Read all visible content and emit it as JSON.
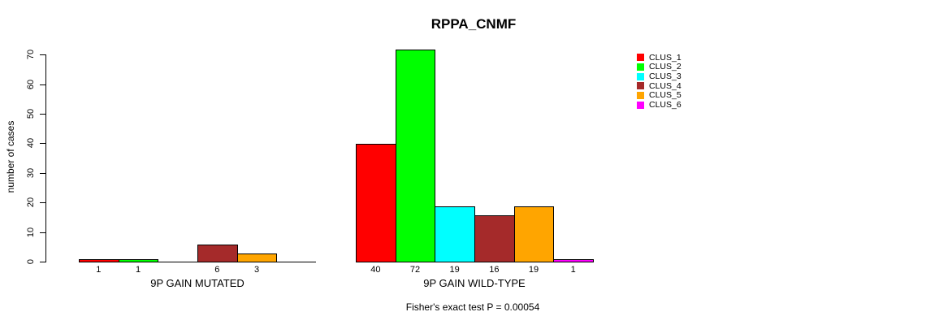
{
  "chart_data": {
    "type": "bar",
    "title": "RPPA_CNMF",
    "ylabel": "number of cases",
    "xlabel": "",
    "ylim": [
      0,
      70
    ],
    "yticks": [
      0,
      10,
      20,
      30,
      40,
      50,
      60,
      70
    ],
    "grid": false,
    "legend_position": "right",
    "categories": [
      "9P GAIN MUTATED",
      "9P GAIN WILD-TYPE"
    ],
    "series": [
      {
        "name": "CLUS_1",
        "color": "#FF0000",
        "values": [
          1,
          40
        ]
      },
      {
        "name": "CLUS_2",
        "color": "#00FF00",
        "values": [
          1,
          72
        ]
      },
      {
        "name": "CLUS_3",
        "color": "#00FFFF",
        "values": [
          0,
          19
        ]
      },
      {
        "name": "CLUS_4",
        "color": "#A52A2A",
        "values": [
          6,
          16
        ]
      },
      {
        "name": "CLUS_5",
        "color": "#FFA500",
        "values": [
          3,
          19
        ]
      },
      {
        "name": "CLUS_6",
        "color": "#FF00FF",
        "values": [
          0,
          1
        ]
      }
    ],
    "bar_value_labels_shown_only_when_nonzero": true,
    "annotation": "Fisher's exact test P = 0.00054"
  }
}
